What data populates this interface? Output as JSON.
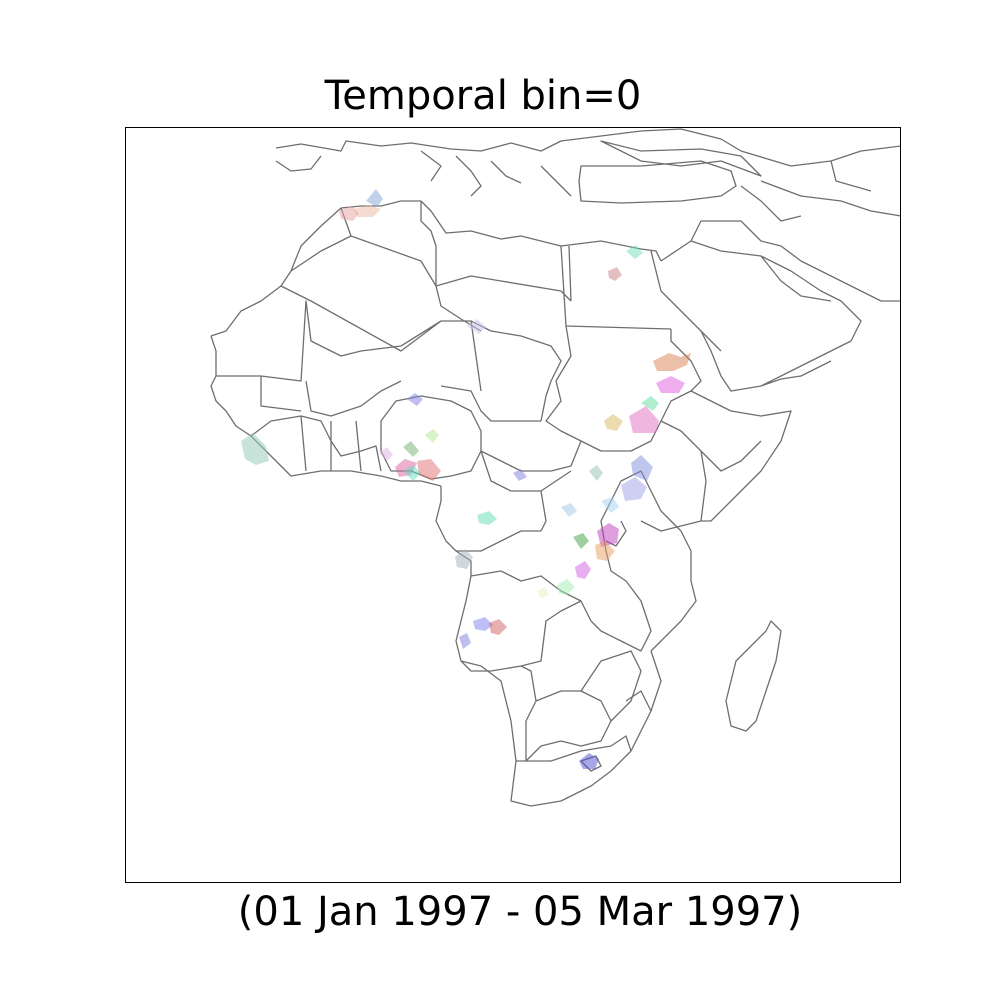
{
  "title": "Temporal bin=0",
  "subtitle": "(01 Jan 1997 - 05 Mar 1997)",
  "map": {
    "region": "Africa and Arabian Peninsula",
    "border_color": "#6e6e6e",
    "cluster_opacity": 0.5,
    "clusters": [
      {
        "id": "algeria-north-1",
        "color": "#e8a0a0"
      },
      {
        "id": "algeria-north-2",
        "color": "#7fa6d6"
      },
      {
        "id": "algeria-north-3",
        "color": "#e9b8a0"
      },
      {
        "id": "israel-1",
        "color": "#6fe0c0"
      },
      {
        "id": "egypt-1",
        "color": "#c98080"
      },
      {
        "id": "niger-1",
        "color": "#c8c0f0"
      },
      {
        "id": "eritrea-1",
        "color": "#d98050"
      },
      {
        "id": "sudan-east-1",
        "color": "#e060e0"
      },
      {
        "id": "ethiopia-west-1",
        "color": "#60e0a0"
      },
      {
        "id": "sudan-south-1",
        "color": "#d8b860"
      },
      {
        "id": "sudan-south-2",
        "color": "#e070c0"
      },
      {
        "id": "sierra-leone-1",
        "color": "#90c8b8"
      },
      {
        "id": "nigeria-north-1",
        "color": "#8080e0"
      },
      {
        "id": "nigeria-1",
        "color": "#b0e890"
      },
      {
        "id": "nigeria-2",
        "color": "#70b070"
      },
      {
        "id": "nigeria-south-1",
        "color": "#e060a0"
      },
      {
        "id": "nigeria-south-2",
        "color": "#e0b0e0"
      },
      {
        "id": "nigeria-south-3",
        "color": "#60e0c0"
      },
      {
        "id": "nigeria-south-4",
        "color": "#e07070"
      },
      {
        "id": "car-1",
        "color": "#8080e0"
      },
      {
        "id": "uganda-1",
        "color": "#90c0b0"
      },
      {
        "id": "uganda-2",
        "color": "#8090e0"
      },
      {
        "id": "uganda-3",
        "color": "#a0a0e8"
      },
      {
        "id": "gabon-1",
        "color": "#60e0b0"
      },
      {
        "id": "drc-1",
        "color": "#a0c8e8"
      },
      {
        "id": "drc-east-1",
        "color": "#a0d0f0"
      },
      {
        "id": "rwanda-1",
        "color": "#c040c0"
      },
      {
        "id": "burundi-1",
        "color": "#e8a060"
      },
      {
        "id": "drc-2",
        "color": "#40a040"
      },
      {
        "id": "drc-3",
        "color": "#d060e0"
      },
      {
        "id": "drc-4",
        "color": "#a0f0b0"
      },
      {
        "id": "drc-5",
        "color": "#e8f0c0"
      },
      {
        "id": "congo-1",
        "color": "#a0b0c0"
      },
      {
        "id": "angola-1",
        "color": "#8080f0"
      },
      {
        "id": "angola-2",
        "color": "#d06060"
      },
      {
        "id": "angola-3",
        "color": "#8080e0"
      },
      {
        "id": "south-africa-1",
        "color": "#5050d0"
      }
    ]
  }
}
